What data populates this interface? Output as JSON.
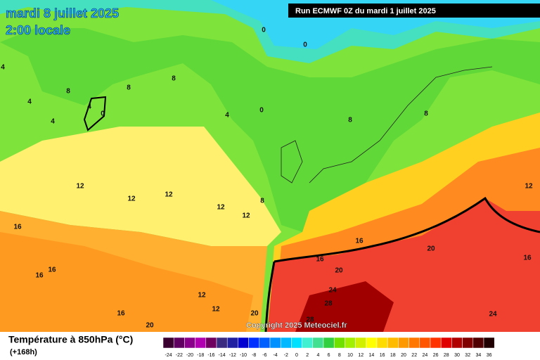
{
  "header": {
    "date": "mardi 8 juillet 2025",
    "time": "2:00 locale",
    "run": "Run ECMWF 0Z du mardi 1 juillet 2025"
  },
  "map": {
    "copyright": "Copyright 2025 Meteociel.fr",
    "contour_labels": [
      "0",
      "0",
      "4",
      "8",
      "4",
      "4",
      "0",
      "8",
      "8",
      "4",
      "4",
      "0",
      "8",
      "8",
      "12",
      "12",
      "12",
      "12",
      "12",
      "8",
      "12",
      "16",
      "16",
      "16",
      "20",
      "20",
      "16",
      "16",
      "16",
      "12",
      "12",
      "24",
      "28",
      "16",
      "20",
      "28",
      "24",
      "20"
    ]
  },
  "legend": {
    "title": "Température à 850hPa (°C)",
    "subtitle": "(+168h)",
    "labels": [
      "-24",
      "-22",
      "-20",
      "-18",
      "-16",
      "-14",
      "-12",
      "-10",
      "-8",
      "-6",
      "-4",
      "-2",
      "0",
      "2",
      "4",
      "6",
      "8",
      "10",
      "12",
      "14",
      "16",
      "18",
      "20",
      "22",
      "24",
      "26",
      "28",
      "30",
      "32",
      "34",
      "36"
    ],
    "colors": [
      "#3a0030",
      "#600060",
      "#8a008a",
      "#b000b0",
      "#700060",
      "#3a2a80",
      "#2020a0",
      "#0000d0",
      "#0030ff",
      "#0060ff",
      "#0090ff",
      "#00b8ff",
      "#00e0ff",
      "#40f0d0",
      "#40e090",
      "#30d040",
      "#70e000",
      "#a0f000",
      "#d0f000",
      "#ffff00",
      "#ffdc00",
      "#ffbb00",
      "#ff9900",
      "#ff7700",
      "#ff5500",
      "#ff3300",
      "#e00000",
      "#b00000",
      "#800000",
      "#500000",
      "#200000"
    ]
  }
}
